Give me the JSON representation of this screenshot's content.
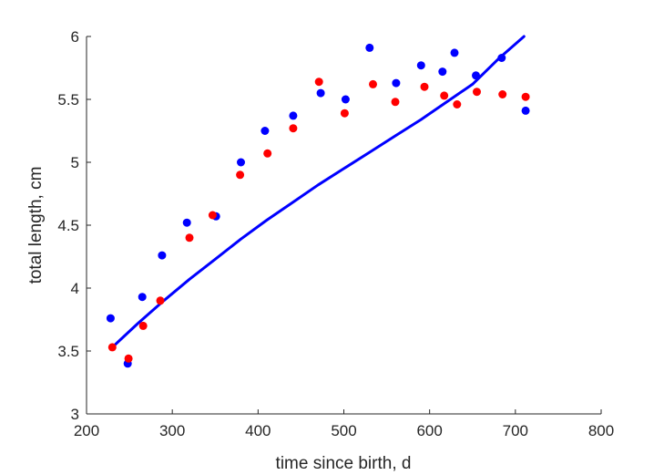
{
  "chart_data": {
    "type": "scatter",
    "title": "",
    "xlabel": "time since birth, d",
    "ylabel": "total length, cm",
    "xlim": [
      200,
      800
    ],
    "ylim": [
      3,
      6
    ],
    "xticks": [
      200,
      300,
      400,
      500,
      600,
      700,
      800
    ],
    "yticks": [
      3,
      3.5,
      4,
      4.5,
      5,
      5.5,
      6
    ],
    "grid": false,
    "series": [
      {
        "type": "scatter",
        "color": "#0000ff",
        "points": [
          [
            228,
            3.76
          ],
          [
            248,
            3.4
          ],
          [
            265,
            3.93
          ],
          [
            288,
            4.26
          ],
          [
            317,
            4.52
          ],
          [
            351,
            4.57
          ],
          [
            380,
            5.0
          ],
          [
            408,
            5.25
          ],
          [
            441,
            5.37
          ],
          [
            473,
            5.55
          ],
          [
            502,
            5.5
          ],
          [
            530,
            5.91
          ],
          [
            561,
            5.63
          ],
          [
            590,
            5.77
          ],
          [
            615,
            5.72
          ],
          [
            629,
            5.87
          ],
          [
            654,
            5.69
          ],
          [
            684,
            5.83
          ],
          [
            712,
            5.41
          ]
        ]
      },
      {
        "type": "scatter",
        "color": "#ff0000",
        "points": [
          [
            230,
            3.53
          ],
          [
            249,
            3.44
          ],
          [
            266,
            3.7
          ],
          [
            286,
            3.9
          ],
          [
            320,
            4.4
          ],
          [
            347,
            4.58
          ],
          [
            379,
            4.9
          ],
          [
            411,
            5.07
          ],
          [
            441,
            5.27
          ],
          [
            471,
            5.64
          ],
          [
            501,
            5.39
          ],
          [
            534,
            5.62
          ],
          [
            560,
            5.48
          ],
          [
            594,
            5.6
          ],
          [
            617,
            5.53
          ],
          [
            632,
            5.46
          ],
          [
            655,
            5.56
          ],
          [
            685,
            5.54
          ],
          [
            712,
            5.52
          ]
        ]
      },
      {
        "type": "line",
        "color": "#0000ff",
        "points": [
          [
            230,
            3.53
          ],
          [
            260,
            3.72
          ],
          [
            290,
            3.9
          ],
          [
            320,
            4.07
          ],
          [
            350,
            4.23
          ],
          [
            380,
            4.39
          ],
          [
            410,
            4.54
          ],
          [
            440,
            4.68
          ],
          [
            470,
            4.82
          ],
          [
            500,
            4.95
          ],
          [
            530,
            5.08
          ],
          [
            560,
            5.21
          ],
          [
            590,
            5.34
          ],
          [
            620,
            5.48
          ],
          [
            650,
            5.62
          ],
          [
            680,
            5.82
          ],
          [
            710,
            6.0
          ]
        ]
      }
    ]
  }
}
